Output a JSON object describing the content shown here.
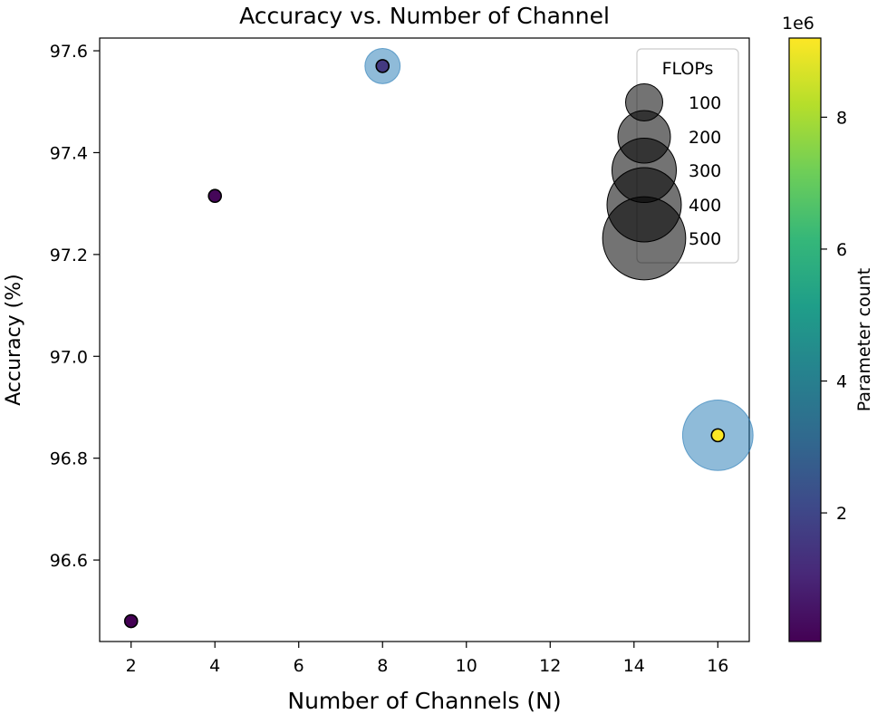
{
  "chart_data": {
    "type": "scatter",
    "title": "Accuracy vs. Number of Channel",
    "xlabel": "Number of Channels (N)",
    "ylabel": "Accuracy (%)",
    "xlim": [
      1.25,
      16.75
    ],
    "ylim": [
      96.44,
      97.625
    ],
    "xticks": [
      2,
      4,
      6,
      8,
      10,
      12,
      14,
      16
    ],
    "yticks": [
      96.6,
      96.8,
      97.0,
      97.2,
      97.4,
      97.6
    ],
    "ytick_labels": [
      "96.6",
      "96.8",
      "97.0",
      "97.2",
      "97.4",
      "97.6"
    ],
    "grid": false,
    "points": [
      {
        "x": 2,
        "y": 96.48,
        "params": 0.05
      },
      {
        "x": 4,
        "y": 97.315,
        "params": 0.2
      },
      {
        "x": 8,
        "y": 97.57,
        "params": 1.6,
        "flops": 90
      },
      {
        "x": 16,
        "y": 96.845,
        "params": 9.2,
        "flops": 360
      }
    ],
    "flops_color": "#1f77b4",
    "legend": {
      "title": "FLOPs",
      "placement": "top-right",
      "entries": [
        "100",
        "200",
        "300",
        "400",
        "500"
      ],
      "values": [
        100,
        200,
        300,
        400,
        500
      ]
    },
    "colorbar": {
      "label": "Parameter count",
      "offset_label": "1e6",
      "range": [
        0.05,
        9.2
      ],
      "ticks": [
        2,
        4,
        6,
        8
      ],
      "tick_labels": [
        "2",
        "4",
        "6",
        "8"
      ],
      "colormap": "viridis",
      "stops": [
        "#440154",
        "#482878",
        "#3e4989",
        "#31688e",
        "#26828e",
        "#1f9e89",
        "#35b779",
        "#6ece58",
        "#b5de2b",
        "#fde725"
      ]
    }
  }
}
